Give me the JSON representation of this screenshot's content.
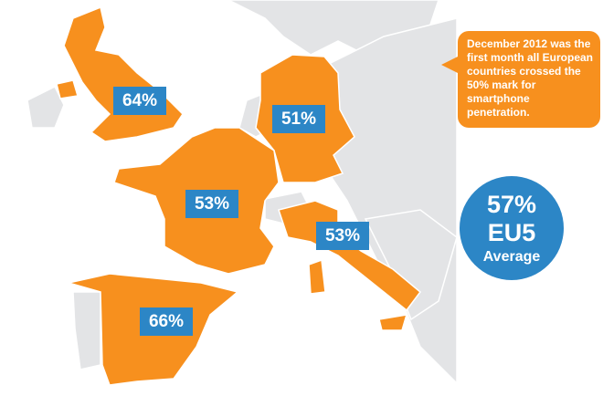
{
  "colors": {
    "highlight": "#F7901E",
    "label": "#2C86C6",
    "land": "#E3E4E6"
  },
  "countries": [
    {
      "name": "United Kingdom",
      "value": "64%"
    },
    {
      "name": "Germany",
      "value": "51%"
    },
    {
      "name": "France",
      "value": "53%"
    },
    {
      "name": "Italy",
      "value": "53%"
    },
    {
      "name": "Spain",
      "value": "66%"
    }
  ],
  "callout": "December 2012 was the first month all European countries crossed the 50% mark for smartphone penetration.",
  "average": {
    "value": "57%",
    "group": "EU5",
    "label": "Average"
  }
}
